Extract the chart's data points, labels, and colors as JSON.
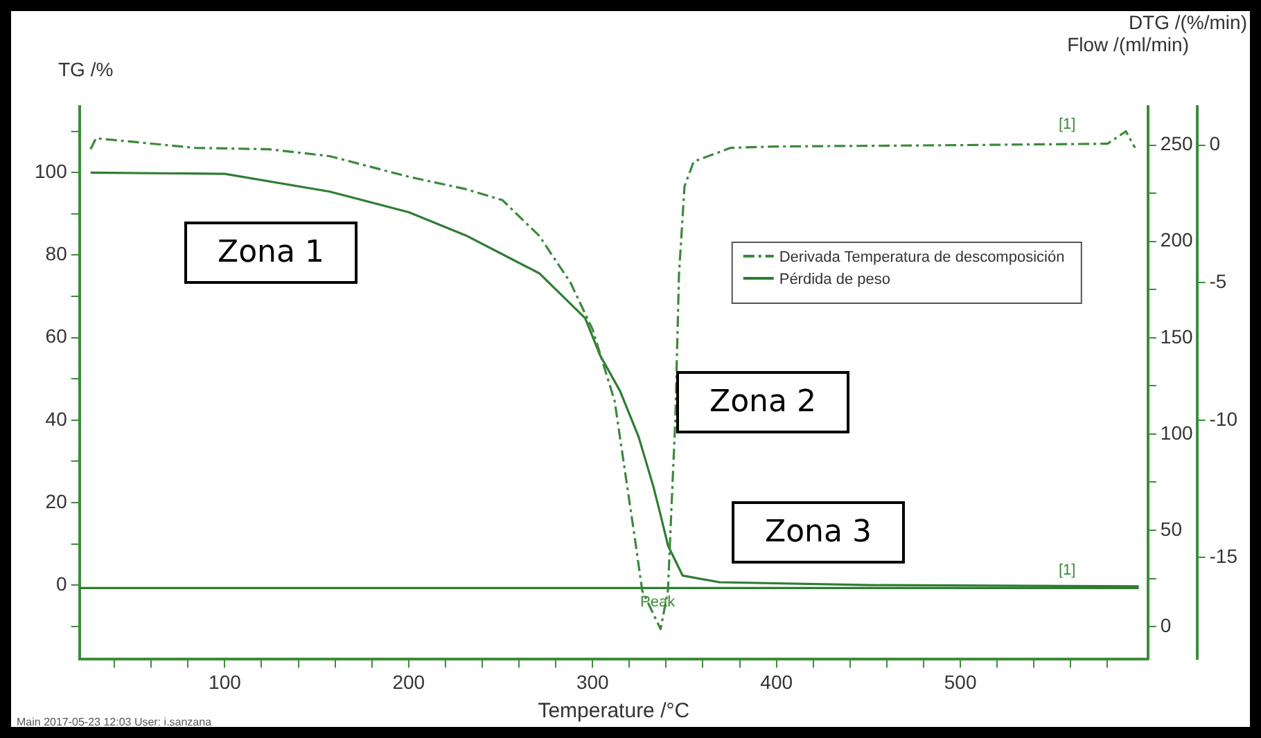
{
  "chart_data": {
    "type": "line",
    "xlabel": "Temperature /°C",
    "ylabel": "TG /%",
    "y2label": "Flow /(ml/min)",
    "y3label": "DTG /(%/min)",
    "xlim": [
      21,
      602
    ],
    "ylim": [
      -18,
      116
    ],
    "y2lim": [
      -17,
      270
    ],
    "y3lim": [
      -18.7,
      1.4
    ],
    "xticks": [
      {
        "value": 40,
        "label": null
      },
      {
        "value": 60,
        "label": null
      },
      {
        "value": 80,
        "label": null
      },
      100,
      {
        "value": 120,
        "label": null
      },
      {
        "value": 140,
        "label": null
      },
      {
        "value": 160,
        "label": null
      },
      {
        "value": 180,
        "label": null
      },
      200,
      {
        "value": 220,
        "label": null
      },
      {
        "value": 240,
        "label": null
      },
      {
        "value": 260,
        "label": null
      },
      {
        "value": 280,
        "label": null
      },
      300,
      {
        "value": 320,
        "label": null
      },
      {
        "value": 340,
        "label": null
      },
      {
        "value": 360,
        "label": null
      },
      {
        "value": 380,
        "label": null
      },
      400,
      {
        "value": 420,
        "label": null
      },
      {
        "value": 440,
        "label": null
      },
      {
        "value": 460,
        "label": null
      },
      {
        "value": 480,
        "label": null
      },
      500,
      {
        "value": 520,
        "label": null
      },
      {
        "value": 540,
        "label": null
      },
      {
        "value": 560,
        "label": null
      },
      {
        "value": 580,
        "label": null
      }
    ],
    "yticks": [
      {
        "value": -10,
        "label": null
      },
      0,
      {
        "value": 10,
        "label": null
      },
      20,
      {
        "value": 30,
        "label": null
      },
      40,
      {
        "value": 50,
        "label": null
      },
      60,
      {
        "value": 70,
        "label": null
      },
      80,
      {
        "value": 90,
        "label": null
      },
      100,
      {
        "value": 110,
        "label": null
      }
    ],
    "y2ticks": [
      0,
      {
        "value": 25,
        "label": null
      },
      50,
      {
        "value": 75,
        "label": null
      },
      100,
      {
        "value": 125,
        "label": null
      },
      150,
      {
        "value": 175,
        "label": null
      },
      200,
      {
        "value": 225,
        "label": null
      },
      250
    ],
    "y3ticks": [
      -15,
      -10,
      -5,
      0
    ],
    "grid": false,
    "legend": "top right",
    "marker": "none",
    "series": [
      {
        "name": "Derivada Temperatura de descomposición",
        "color": "#3a8a3a",
        "axis": "y3",
        "line_style": "dashed",
        "x": [
          27,
          30,
          84,
          124,
          157,
          200,
          231,
          251,
          271,
          288,
          300,
          312,
          323,
          327,
          337,
          341,
          342,
          345,
          347,
          350,
          355,
          375,
          400,
          500,
          580,
          590,
          595
        ],
        "values": [
          -0.15,
          0.25,
          -0.1,
          -0.15,
          -0.4,
          -1.15,
          -1.6,
          -2.0,
          -3.3,
          -5.0,
          -6.7,
          -9.3,
          -14.3,
          -16.2,
          -17.6,
          -16.2,
          -14.6,
          -10,
          -4.7,
          -1.5,
          -0.6,
          -0.1,
          -0.05,
          0,
          0.05,
          0.5,
          -0.1
        ]
      },
      {
        "name": "Pérdida de peso",
        "color": "#2e7d32",
        "axis": "y",
        "line_style": "solid",
        "x": [
          27,
          100,
          157,
          200,
          231,
          271,
          296,
          304,
          315,
          325,
          333,
          337,
          341,
          349,
          369,
          451,
          597
        ],
        "values": [
          100,
          99.7,
          95.4,
          90.4,
          84.8,
          75.6,
          64.7,
          55.8,
          47,
          36,
          24,
          17,
          9.6,
          2.3,
          0.7,
          0,
          -0.3
        ]
      },
      {
        "color": "#2e7d32",
        "axis": "y2",
        "line_style": "solid",
        "x": [
          21,
          597
        ],
        "values": [
          20,
          20
        ]
      }
    ],
    "annotations": [
      "Zona 1",
      "Zona 2",
      "Zona 3",
      "Peak",
      "[1]",
      "[1]",
      "Main   2017-05-23 12:03   User: i.sanzana"
    ]
  }
}
